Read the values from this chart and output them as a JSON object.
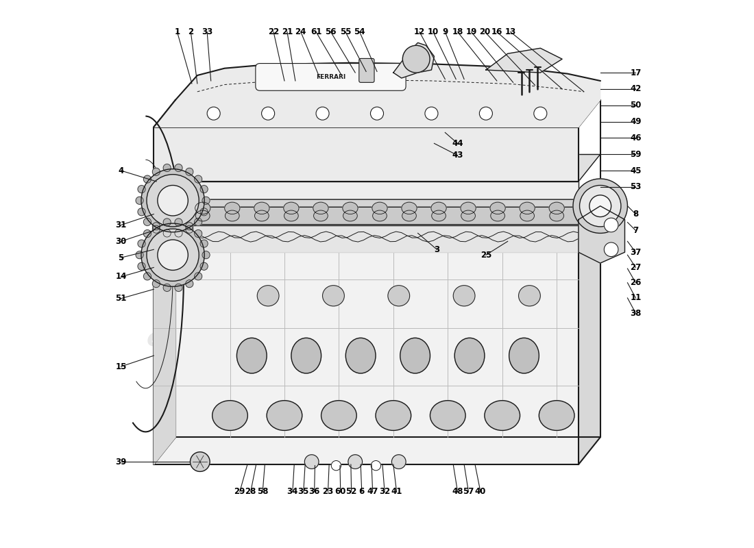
{
  "background_color": "#ffffff",
  "watermark_text": "eurospares",
  "watermark_color": "#cccccc",
  "black": "#1a1a1a"
}
